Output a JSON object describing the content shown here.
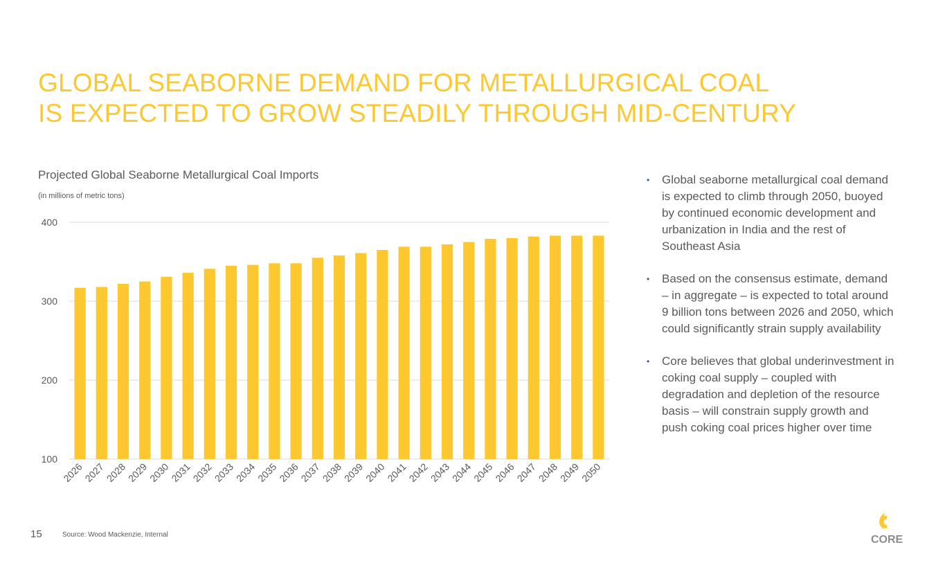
{
  "slide": {
    "title_line1": "GLOBAL SEABORNE DEMAND FOR METALLURGICAL COAL",
    "title_line2": "IS EXPECTED TO GROW STEADILY THROUGH MID-CENTURY",
    "page_number": "15",
    "source": "Source: Wood Mackenzie, Internal",
    "logo_text": "CORE"
  },
  "bullets": [
    "Global seaborne metallurgical coal demand is expected to climb through 2050, buoyed by continued economic development and urbanization in India and the rest of Southeast Asia",
    "Based on the consensus estimate, demand – in aggregate – is expected to total around 9 billion tons between 2026 and 2050, which could significantly strain supply availability",
    "Core believes that global underinvestment in coking coal supply – coupled with degradation and depletion of the resource basis – will constrain supply growth and push coking coal prices higher over time"
  ],
  "colors": {
    "accent": "#FDC82F",
    "bar": "#FDC82F",
    "text": "#595959",
    "bullet": "#2E5C8A",
    "grid": "#D9D9D9"
  },
  "chart_data": {
    "type": "bar",
    "title": "Projected Global Seaborne Metallurgical Coal Imports",
    "subtitle": "(in millions of metric tons)",
    "xlabel": "",
    "ylabel": "",
    "ylim": [
      100,
      400
    ],
    "yticks": [
      100,
      200,
      300,
      400
    ],
    "grid": true,
    "categories": [
      "2026",
      "2027",
      "2028",
      "2029",
      "2030",
      "2031",
      "2032",
      "2033",
      "2034",
      "2035",
      "2036",
      "2037",
      "2038",
      "2039",
      "2040",
      "2041",
      "2042",
      "2043",
      "2044",
      "2045",
      "2046",
      "2047",
      "2048",
      "2049",
      "2050"
    ],
    "values": [
      317,
      318,
      322,
      325,
      331,
      336,
      341,
      345,
      346,
      348,
      348,
      355,
      358,
      361,
      365,
      369,
      369,
      372,
      375,
      379,
      380,
      382,
      383,
      383,
      383
    ]
  }
}
